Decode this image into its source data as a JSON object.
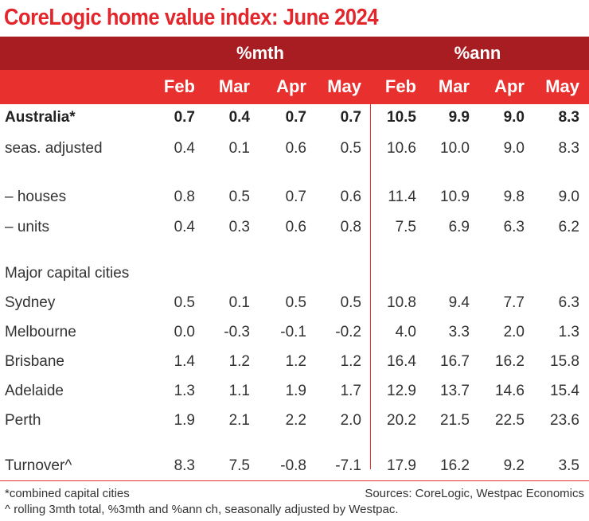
{
  "title": "CoreLogic home value index: June 2024",
  "chart_data": {
    "type": "table",
    "title": "CoreLogic home value index: June 2024",
    "column_groups": [
      "%mth",
      "%ann"
    ],
    "columns": [
      "Feb",
      "Mar",
      "Apr",
      "May",
      "Feb",
      "Mar",
      "Apr",
      "May"
    ],
    "rows": [
      {
        "label": "Australia*",
        "bold": true,
        "values": [
          "0.7",
          "0.4",
          "0.7",
          "0.7",
          "10.5",
          "9.9",
          "9.0",
          "8.3"
        ]
      },
      {
        "label": "seas. adjusted",
        "values": [
          "0.4",
          "0.1",
          "0.6",
          "0.5",
          "10.6",
          "10.0",
          "9.0",
          "8.3"
        ]
      },
      {
        "label": " – houses",
        "values": [
          "0.8",
          "0.5",
          "0.7",
          "0.6",
          "11.4",
          "10.9",
          "9.8",
          "9.0"
        ]
      },
      {
        "label": " – units",
        "values": [
          "0.4",
          "0.3",
          "0.6",
          "0.8",
          "7.5",
          "6.9",
          "6.3",
          "6.2"
        ]
      },
      {
        "label": "Major capital cities",
        "values": []
      },
      {
        "label": "Sydney",
        "values": [
          "0.5",
          "0.1",
          "0.5",
          "0.5",
          "10.8",
          "9.4",
          "7.7",
          "6.3"
        ]
      },
      {
        "label": "Melbourne",
        "values": [
          "0.0",
          "-0.3",
          "-0.1",
          "-0.2",
          "4.0",
          "3.3",
          "2.0",
          "1.3"
        ]
      },
      {
        "label": "Brisbane",
        "values": [
          "1.4",
          "1.2",
          "1.2",
          "1.2",
          "16.4",
          "16.7",
          "16.2",
          "15.8"
        ]
      },
      {
        "label": "Adelaide",
        "values": [
          "1.3",
          "1.1",
          "1.9",
          "1.7",
          "12.9",
          "13.7",
          "14.6",
          "15.4"
        ]
      },
      {
        "label": "Perth",
        "values": [
          "1.9",
          "2.1",
          "2.2",
          "2.0",
          "20.2",
          "21.5",
          "22.5",
          "23.6"
        ]
      },
      {
        "label": "Turnover^",
        "values": [
          "8.3",
          "7.5",
          "-0.8",
          "-7.1",
          "17.9",
          "16.2",
          "9.2",
          "3.5"
        ]
      }
    ]
  },
  "footnotes": {
    "combined": "*combined capital cities",
    "sources": "Sources: CoreLogic, Westpac Economics",
    "rolling": "^ rolling 3mth total, %3mth and %ann ch, seasonally adjusted by Westpac."
  },
  "colors": {
    "title": "#e3262c",
    "header_dark": "#a71d22",
    "header_light": "#e8302f"
  }
}
